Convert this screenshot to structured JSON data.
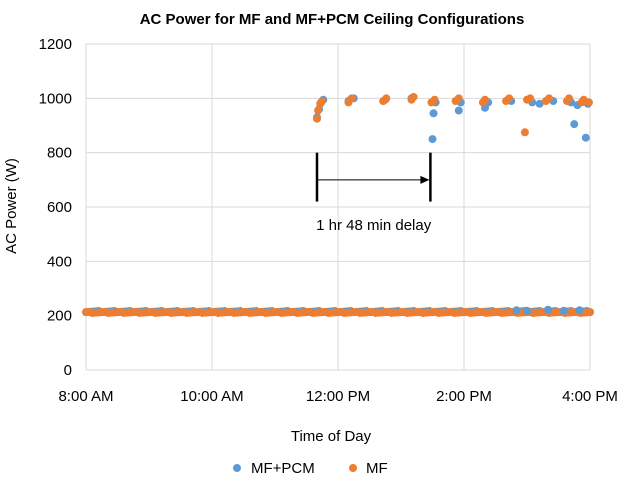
{
  "chart_data": {
    "type": "scatter",
    "title": "AC Power for MF and MF+PCM Ceiling Configurations",
    "xlabel": "Time of Day",
    "ylabel": "AC Power (W)",
    "x_ticks": [
      "8:00 AM",
      "10:00 AM",
      "12:00 PM",
      "2:00 PM",
      "4:00 PM"
    ],
    "y_ticks": [
      "0",
      "200",
      "400",
      "600",
      "800",
      "1000",
      "1200"
    ],
    "xlim": [
      "8:00 AM",
      "4:00 PM"
    ],
    "ylim": [
      0,
      1200
    ],
    "grid": true,
    "legend_position": "bottom",
    "series": [
      {
        "name": "MF+PCM",
        "color": "#5b9bd5",
        "base_value": 215,
        "points": [
          {
            "x": "11:40 AM",
            "y": 930
          },
          {
            "x": "11:42 AM",
            "y": 960
          },
          {
            "x": "11:44 AM",
            "y": 985
          },
          {
            "x": "11:46 AM",
            "y": 995
          },
          {
            "x": "12:10 PM",
            "y": 990
          },
          {
            "x": "12:15 PM",
            "y": 1000
          },
          {
            "x": "12:45 PM",
            "y": 995
          },
          {
            "x": "1:10 PM",
            "y": 1000
          },
          {
            "x": "1:30 PM",
            "y": 850
          },
          {
            "x": "1:31 PM",
            "y": 945
          },
          {
            "x": "1:33 PM",
            "y": 985
          },
          {
            "x": "1:55 PM",
            "y": 955
          },
          {
            "x": "1:57 PM",
            "y": 985
          },
          {
            "x": "2:20 PM",
            "y": 965
          },
          {
            "x": "2:23 PM",
            "y": 985
          },
          {
            "x": "2:45 PM",
            "y": 990
          },
          {
            "x": "3:05 PM",
            "y": 985
          },
          {
            "x": "3:12 PM",
            "y": 980
          },
          {
            "x": "3:25 PM",
            "y": 990
          },
          {
            "x": "3:42 PM",
            "y": 985
          },
          {
            "x": "3:45 PM",
            "y": 905
          },
          {
            "x": "3:48 PM",
            "y": 975
          },
          {
            "x": "3:56 PM",
            "y": 855
          },
          {
            "x": "3:58 PM",
            "y": 980
          },
          {
            "x": "2:50 PM",
            "y": 220
          },
          {
            "x": "3:00 PM",
            "y": 218
          },
          {
            "x": "3:20 PM",
            "y": 222
          },
          {
            "x": "3:35 PM",
            "y": 218
          },
          {
            "x": "3:50 PM",
            "y": 220
          }
        ]
      },
      {
        "name": "MF",
        "color": "#ed7d31",
        "base_value": 212,
        "points": [
          {
            "x": "11:40 AM",
            "y": 925
          },
          {
            "x": "11:41 AM",
            "y": 955
          },
          {
            "x": "11:43 AM",
            "y": 980
          },
          {
            "x": "11:45 AM",
            "y": 990
          },
          {
            "x": "12:10 PM",
            "y": 985
          },
          {
            "x": "12:13 PM",
            "y": 1000
          },
          {
            "x": "12:43 PM",
            "y": 990
          },
          {
            "x": "12:46 PM",
            "y": 1000
          },
          {
            "x": "1:10 PM",
            "y": 995
          },
          {
            "x": "1:12 PM",
            "y": 1005
          },
          {
            "x": "1:29 PM",
            "y": 985
          },
          {
            "x": "1:32 PM",
            "y": 995
          },
          {
            "x": "1:52 PM",
            "y": 990
          },
          {
            "x": "1:55 PM",
            "y": 1000
          },
          {
            "x": "2:18 PM",
            "y": 985
          },
          {
            "x": "2:20 PM",
            "y": 995
          },
          {
            "x": "2:40 PM",
            "y": 990
          },
          {
            "x": "2:43 PM",
            "y": 1000
          },
          {
            "x": "2:58 PM",
            "y": 875
          },
          {
            "x": "3:00 PM",
            "y": 995
          },
          {
            "x": "3:03 PM",
            "y": 1000
          },
          {
            "x": "3:18 PM",
            "y": 990
          },
          {
            "x": "3:21 PM",
            "y": 1000
          },
          {
            "x": "3:38 PM",
            "y": 990
          },
          {
            "x": "3:40 PM",
            "y": 1000
          },
          {
            "x": "3:52 PM",
            "y": 985
          },
          {
            "x": "3:54 PM",
            "y": 995
          },
          {
            "x": "3:59 PM",
            "y": 985
          }
        ]
      }
    ],
    "annotation": {
      "text": "1 hr 48 min delay",
      "start": "11:40 AM",
      "end": "1:28 PM",
      "y": 700,
      "bar_top": 800,
      "bar_bottom": 620
    }
  }
}
